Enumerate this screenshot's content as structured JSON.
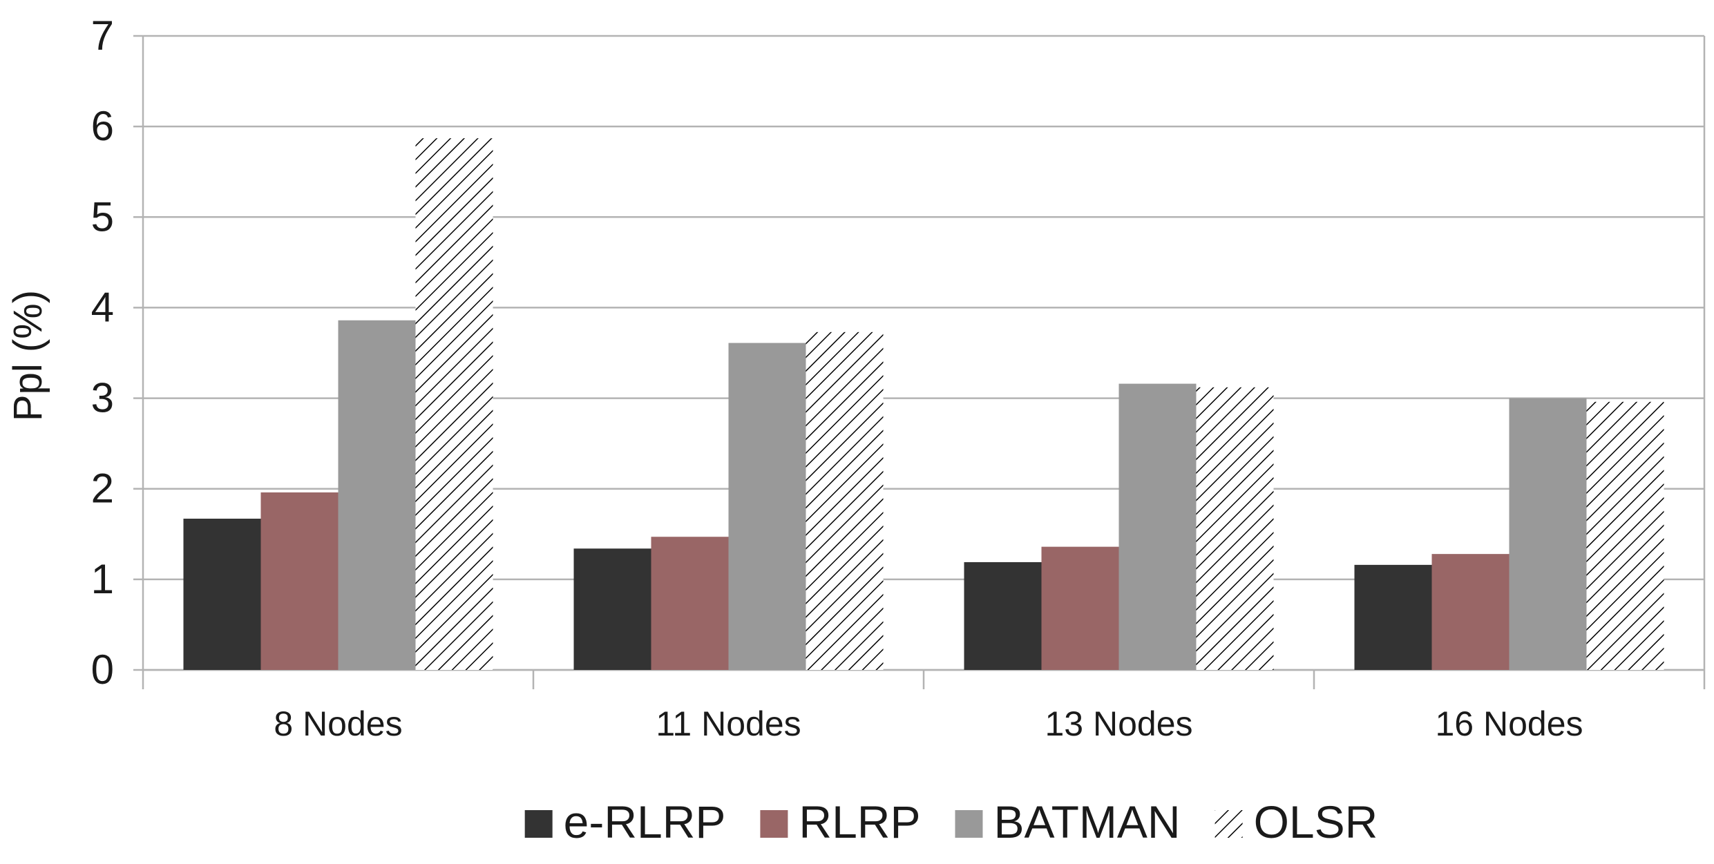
{
  "chart_data": {
    "type": "bar",
    "title": "",
    "xlabel": "",
    "ylabel": "Ppl (%)",
    "ylim": [
      0,
      7
    ],
    "yticks": [
      0,
      1,
      2,
      3,
      4,
      5,
      6,
      7
    ],
    "grid": true,
    "legend_position": "bottom",
    "categories": [
      "8 Nodes",
      "11 Nodes",
      "13 Nodes",
      "16 Nodes"
    ],
    "series": [
      {
        "name": "e-RLRP",
        "values": [
          1.67,
          1.34,
          1.19,
          1.16
        ],
        "color": "#333333",
        "pattern": "solid"
      },
      {
        "name": "RLRP",
        "values": [
          1.96,
          1.47,
          1.36,
          1.28
        ],
        "color": "#996666",
        "pattern": "solid"
      },
      {
        "name": "BATMAN",
        "values": [
          3.86,
          3.61,
          3.16,
          3.0
        ],
        "color": "#999999",
        "pattern": "solid"
      },
      {
        "name": "OLSR",
        "values": [
          5.87,
          3.73,
          3.12,
          2.96
        ],
        "color": "#000000",
        "pattern": "hatch"
      }
    ]
  }
}
